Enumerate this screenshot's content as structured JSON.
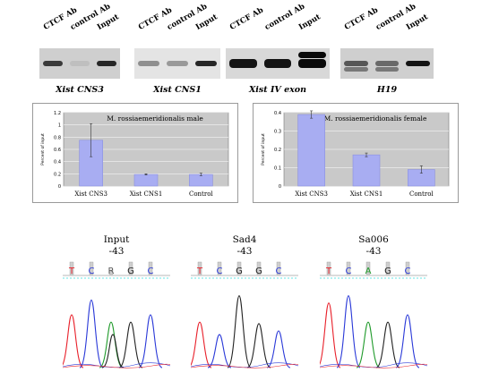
{
  "gel": {
    "lanes": [
      "CTCF Ab",
      "control Ab",
      "Input"
    ],
    "panels": [
      {
        "title": "Xist CNS3",
        "bands": [
          0.75,
          0.05,
          0.85
        ]
      },
      {
        "title": "Xist CNS1",
        "bands": [
          0.3,
          0.25,
          0.85
        ]
      },
      {
        "title": "Xist IV exon",
        "bands": [
          0.95,
          0.95,
          1.0
        ]
      },
      {
        "title": "H19",
        "bands": [
          0.6,
          0.5,
          0.95
        ]
      }
    ]
  },
  "chart_data": [
    {
      "type": "bar",
      "title": "M. rossiaemeridionalis male",
      "ylabel": "Percent of input",
      "categories": [
        "Xist CNS3",
        "Xist CNS1",
        "Control"
      ],
      "values": [
        0.75,
        0.19,
        0.19
      ],
      "errors": [
        0.27,
        0.01,
        0.02
      ],
      "ylim": [
        0,
        1.2
      ],
      "yticks": [
        "0",
        "0.2",
        "0.4",
        "0.6",
        "0.8",
        "1",
        "1.2"
      ],
      "grid": true,
      "bar_color": "#a8adf2"
    },
    {
      "type": "bar",
      "title": "M. rossiaemeridionalis female",
      "ylabel": "Percent of input",
      "categories": [
        "Xist CNS3",
        "Xist CNS1",
        "Control"
      ],
      "values": [
        0.39,
        0.17,
        0.09
      ],
      "errors": [
        0.02,
        0.01,
        0.02
      ],
      "ylim": [
        0,
        0.4
      ],
      "yticks": [
        "0",
        "0.1",
        "0.2",
        "0.3",
        "0.4"
      ],
      "grid": true,
      "bar_color": "#a8adf2"
    }
  ],
  "sequencing": [
    {
      "name": "Input",
      "position": "-43",
      "bases": [
        "T",
        "C",
        "R",
        "G",
        "C"
      ]
    },
    {
      "name": "Sad4",
      "position": "-43",
      "bases": [
        "T",
        "C",
        "G",
        "G",
        "C"
      ]
    },
    {
      "name": "Sa006",
      "position": "-43",
      "bases": [
        "T",
        "C",
        "A",
        "G",
        "C"
      ]
    }
  ],
  "colors": {
    "T": "#e8202a",
    "C": "#2a39d8",
    "G": "#222222",
    "A": "#1f9a2a",
    "R": "#555555"
  }
}
